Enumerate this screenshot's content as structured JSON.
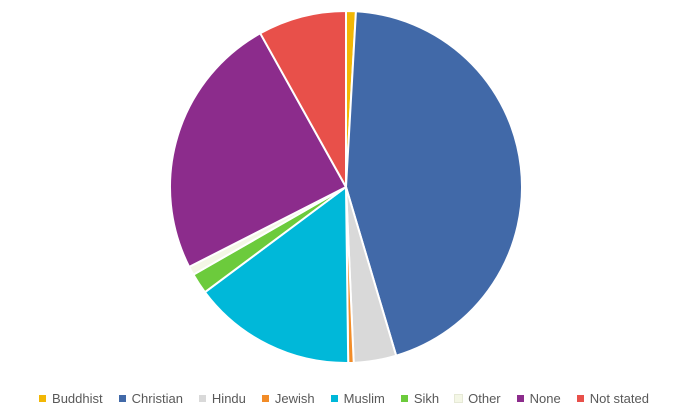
{
  "chart_data": {
    "type": "pie",
    "title": "",
    "start_angle_deg": 0,
    "slices": [
      {
        "label": "Buddhist",
        "value": 0.9,
        "color": "#F2B705"
      },
      {
        "label": "Christian",
        "value": 44.5,
        "color": "#4169A8"
      },
      {
        "label": "Hindu",
        "value": 3.9,
        "color": "#D9D9D9"
      },
      {
        "label": "Jewish",
        "value": 0.5,
        "color": "#F28C28"
      },
      {
        "label": "Muslim",
        "value": 15.0,
        "color": "#00B8D9"
      },
      {
        "label": "Sikh",
        "value": 1.9,
        "color": "#6CCB3C"
      },
      {
        "label": "Other",
        "value": 0.8,
        "color": "#F4F7E6"
      },
      {
        "label": "None",
        "value": 24.4,
        "color": "#8C2C8C"
      },
      {
        "label": "Not stated",
        "value": 8.1,
        "color": "#E8504A"
      }
    ],
    "legend_position": "bottom"
  }
}
